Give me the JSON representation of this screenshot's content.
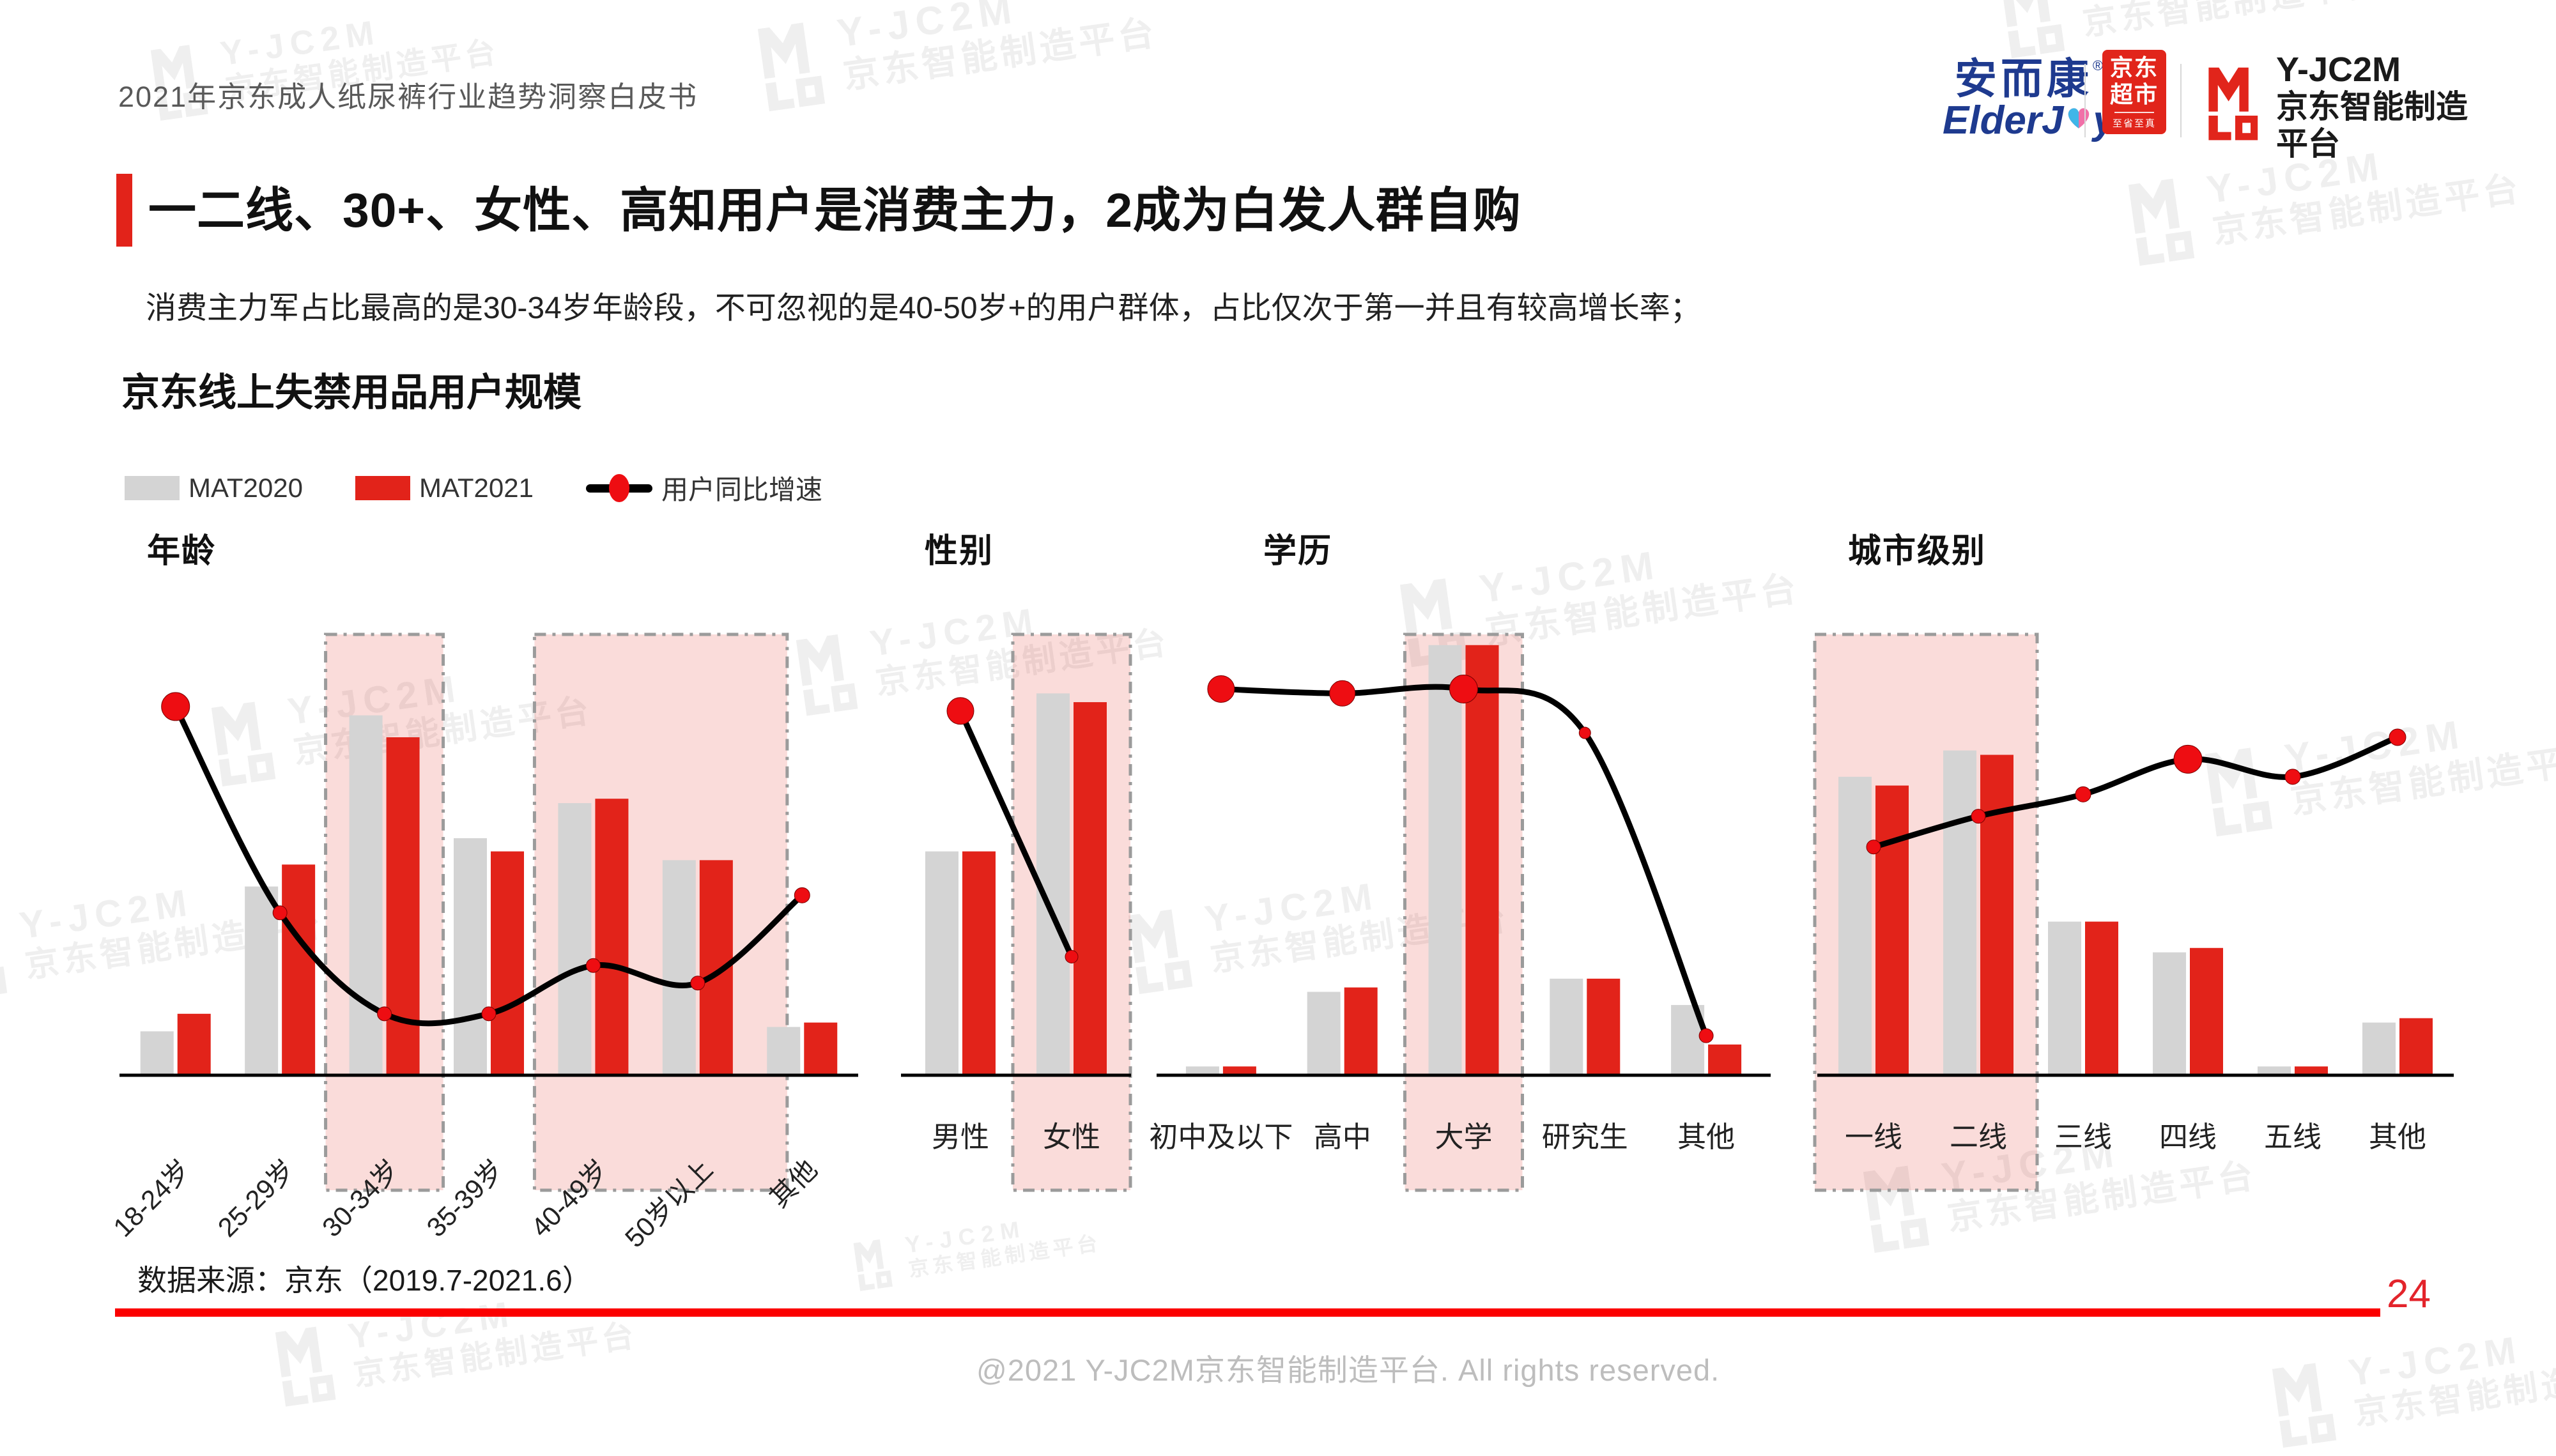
{
  "header": {
    "doc_title": "2021年京东成人纸尿裤行业趋势洞察白皮书"
  },
  "headline": {
    "text": "一二线、30+、女性、高知用户是消费主力，2成为白发人群自购"
  },
  "subtitle": {
    "text": "消费主力军占比最高的是30-34岁年龄段，不可忽视的是40-50岁+的用户群体，占比仅次于第一并且有较高增长率；"
  },
  "section": {
    "title": "京东线上失禁用品用户规模"
  },
  "legend": {
    "items": [
      {
        "label": "MAT2020"
      },
      {
        "label": "MAT2021"
      },
      {
        "label": "用户同比增速"
      }
    ]
  },
  "logos": {
    "elderjoy": {
      "cn": "安而康",
      "reg": "®",
      "en_pre": "ElderJ",
      "en_post": "y",
      "heart_icon": "heart-icon"
    },
    "jd_market": {
      "line1": "京东",
      "line2": "超市",
      "slogan": "至省至真"
    },
    "yjc2m": {
      "name": "Y-JC2M",
      "subtitle": "京东智能制造平台"
    }
  },
  "watermark": {
    "line1": "Y-JC2M",
    "line2": "京东智能制造平台"
  },
  "footer": {
    "source": "数据来源：京东（2019.7-2021.6）",
    "page_number": "24",
    "copyright": "@2021 Y-JC2M京东智能制造平台. All rights reserved."
  },
  "colors": {
    "accent": "#E2231A",
    "bar_mat2020": "#D4D4D4",
    "bar_mat2021": "#E2231A",
    "growth_line": "#000000",
    "growth_dot": "#EE0D12",
    "highlight_fill": "rgba(226,35,26,0.16)",
    "highlight_border": "#9B9B9B",
    "axis": "#000000",
    "label": "#222222",
    "footer_line": "#FB0000",
    "jd_red": "#E1251B",
    "elderjoy_blue": "#1E3A8F",
    "heart_blue": "#3FB6E8",
    "heart_pink": "#F170A8",
    "watermark": "#EFEFEF"
  },
  "chart_data": [
    {
      "type": "bar",
      "title": "年龄",
      "note": "y-axis not labeled in source; values are relative heights 0-100",
      "ylim": [
        0,
        100
      ],
      "categories": [
        "18-24岁",
        "25-29岁",
        "30-34岁",
        "35-39岁",
        "40-49岁",
        "50岁以上",
        "其他"
      ],
      "series": [
        {
          "name": "MAT2020",
          "values": [
            10,
            43,
            82,
            54,
            62,
            49,
            11
          ]
        },
        {
          "name": "MAT2021",
          "values": [
            14,
            48,
            77,
            51,
            63,
            49,
            12
          ]
        }
      ],
      "line": {
        "name": "用户同比增速",
        "values": [
          84,
          37,
          14,
          14,
          25,
          21,
          41
        ],
        "dot_radii": [
          22,
          11,
          11,
          11,
          11,
          11,
          12
        ]
      },
      "highlights": [
        {
          "from": 2,
          "to": 2
        },
        {
          "from": 4,
          "to": 5,
          "pad_right": 48
        }
      ],
      "label_rotate": -45
    },
    {
      "type": "bar",
      "title": "性别",
      "note": "y-axis not labeled in source; values are relative heights 0-100",
      "ylim": [
        0,
        100
      ],
      "categories": [
        "男性",
        "女性"
      ],
      "series": [
        {
          "name": "MAT2020",
          "values": [
            51,
            87
          ]
        },
        {
          "name": "MAT2021",
          "values": [
            51,
            85
          ]
        }
      ],
      "line": {
        "name": "用户同比增速",
        "values": [
          83,
          27
        ],
        "dot_radii": [
          21,
          10
        ]
      },
      "highlights": [
        {
          "from": 1,
          "to": 1
        }
      ],
      "label_rotate": 0
    },
    {
      "type": "bar",
      "title": "学历",
      "note": "y-axis not labeled in source; values are relative heights 0-100",
      "ylim": [
        0,
        100
      ],
      "categories": [
        "初中及以下",
        "高中",
        "大学",
        "研究生",
        "其他"
      ],
      "series": [
        {
          "name": "MAT2020",
          "values": [
            2,
            19,
            98,
            22,
            16
          ]
        },
        {
          "name": "MAT2021",
          "values": [
            2,
            20,
            98,
            22,
            7
          ]
        }
      ],
      "line": {
        "name": "用户同比增速",
        "values": [
          88,
          87,
          88,
          78,
          9
        ],
        "dot_radii": [
          21,
          20,
          22,
          9,
          11
        ]
      },
      "highlights": [
        {
          "from": 2,
          "to": 2
        }
      ],
      "label_rotate": 0
    },
    {
      "type": "bar",
      "title": "城市级别",
      "note": "y-axis not labeled in source; values are relative heights 0-100",
      "ylim": [
        0,
        100
      ],
      "categories": [
        "一线",
        "二线",
        "三线",
        "四线",
        "五线",
        "其他"
      ],
      "series": [
        {
          "name": "MAT2020",
          "values": [
            68,
            74,
            35,
            28,
            2,
            12
          ]
        },
        {
          "name": "MAT2021",
          "values": [
            66,
            73,
            35,
            29,
            2,
            13
          ]
        }
      ],
      "line": {
        "name": "用户同比增速",
        "values": [
          52,
          59,
          64,
          72,
          68,
          77
        ],
        "dot_radii": [
          11,
          11,
          12,
          22,
          12,
          13
        ]
      },
      "highlights": [
        {
          "from": 0,
          "to": 1
        }
      ],
      "label_rotate": 0
    }
  ]
}
